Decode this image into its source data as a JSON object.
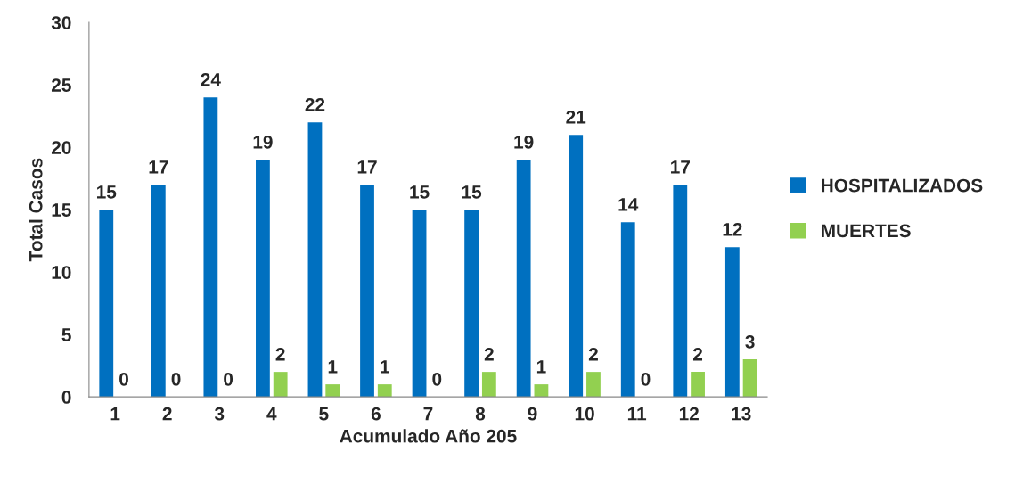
{
  "chart_data": {
    "type": "bar",
    "xlabel": "Acumulado Año 205",
    "ylabel": "Total Casos",
    "categories": [
      "1",
      "2",
      "3",
      "4",
      "5",
      "6",
      "7",
      "8",
      "9",
      "10",
      "11",
      "12",
      "13"
    ],
    "series": [
      {
        "name": "HOSPITALIZADOS",
        "color": "#0070c0",
        "values": [
          15,
          17,
          24,
          19,
          22,
          17,
          15,
          15,
          19,
          21,
          14,
          17,
          12
        ]
      },
      {
        "name": "MUERTES",
        "color": "#92d050",
        "values": [
          0,
          0,
          0,
          2,
          1,
          1,
          0,
          2,
          1,
          2,
          0,
          2,
          3
        ]
      }
    ],
    "ylim": [
      0,
      30
    ],
    "yticks": [
      0,
      5,
      10,
      15,
      20,
      25,
      30
    ],
    "data_labels": true,
    "grid": false,
    "legend": "right"
  }
}
